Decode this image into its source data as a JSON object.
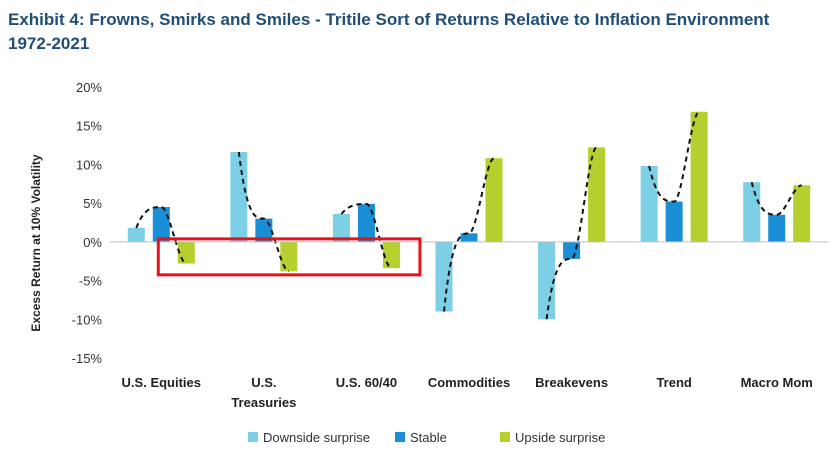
{
  "title": "Exhibit 4: Frowns, Smirks and Smiles - Tritile Sort of Returns Relative to Inflation Environment 1972-2021",
  "chart_data": {
    "type": "bar",
    "ylabel": "Excess Return at 10% Volatility",
    "ylim": [
      -15,
      20
    ],
    "yticks": [
      "-15%",
      "-10%",
      "-5%",
      "0%",
      "5%",
      "10%",
      "15%",
      "20%"
    ],
    "categories": [
      [
        "U.S. Equities"
      ],
      [
        "U.S.",
        "Treasuries"
      ],
      [
        "U.S. 60/40"
      ],
      [
        "Commodities"
      ],
      [
        "Breakevens"
      ],
      [
        "Trend"
      ],
      [
        "Macro Mom"
      ]
    ],
    "series": [
      {
        "name": "Downside surprise",
        "color": "#7ccfe4",
        "values": [
          1.8,
          11.6,
          3.6,
          -9.0,
          -10.0,
          9.8,
          7.7
        ]
      },
      {
        "name": "Stable",
        "color": "#1a8fd6",
        "values": [
          4.5,
          3.0,
          4.9,
          1.1,
          -2.2,
          5.2,
          3.5
        ]
      },
      {
        "name": "Upside surprise",
        "color": "#b5cf2e",
        "values": [
          -2.8,
          -3.8,
          -3.4,
          10.8,
          12.2,
          16.8,
          7.3
        ]
      }
    ],
    "legend": "bottom",
    "grid": false,
    "annotation": {
      "type": "highlight-box",
      "color": "#e8121a"
    }
  }
}
